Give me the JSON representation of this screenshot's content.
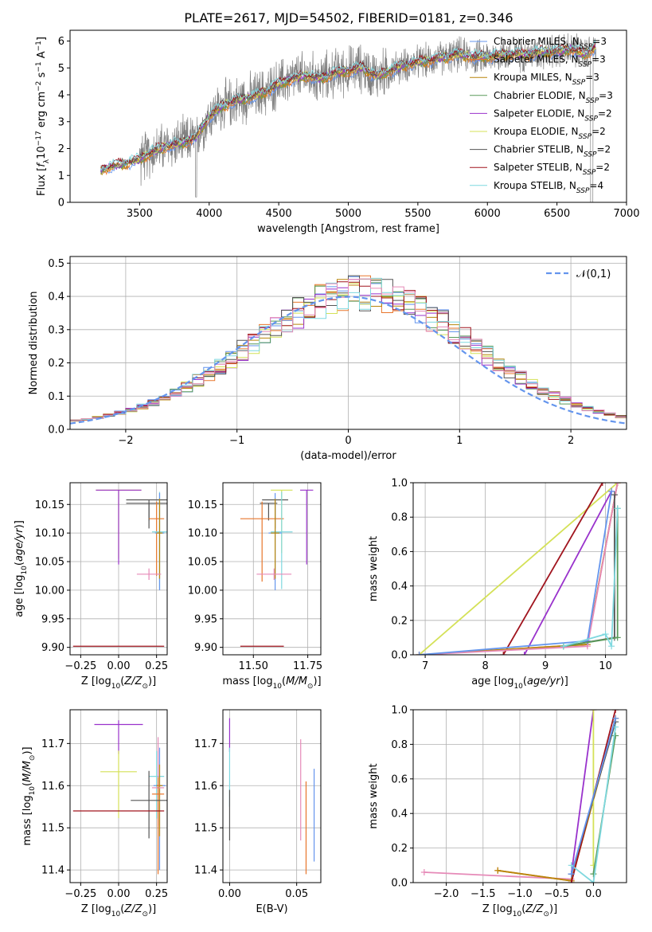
{
  "title": "PLATE=2617, MJD=54502, FIBERID=0181, z=0.346",
  "colors": {
    "Chabrier MILES": "#6495ed",
    "Salpeter MILES": "#e8762b",
    "Kroupa MILES": "#b8860b",
    "Chabrier ELODIE": "#5a9a5a",
    "Salpeter ELODIE": "#9932cc",
    "Kroupa ELODIE": "#d4e157",
    "Chabrier STELIB": "#555555",
    "Salpeter STELIB": "#a0141e",
    "Kroupa STELIB": "#7fd8df",
    "pink": "#e68ab8",
    "normal_curve": "#6495ed",
    "grid": "#b0b0b0"
  },
  "chart_data": [
    {
      "id": "spectrum",
      "type": "line",
      "xlabel": "wavelength [Angstrom, rest frame]",
      "ylabel": "Flux [f_λ 10^-17 erg cm^-2 s^-1 A^-1]",
      "xlim": [
        3000,
        7000
      ],
      "ylim": [
        0,
        6.4
      ],
      "xticks": [
        "3500",
        "4000",
        "4500",
        "5000",
        "5500",
        "6000",
        "6500",
        "7000"
      ],
      "yticks": [
        "0",
        "1",
        "2",
        "3",
        "4",
        "5",
        "6"
      ],
      "grid": false,
      "legend_position": "right",
      "legend": [
        {
          "label": "Chabrier MILES, N_SSP=3",
          "key": "Chabrier MILES"
        },
        {
          "label": "Salpeter MILES, N_SSP=3",
          "key": "Salpeter MILES"
        },
        {
          "label": "Kroupa MILES, N_SSP=3",
          "key": "Kroupa MILES"
        },
        {
          "label": "Chabrier ELODIE, N_SSP=3",
          "key": "Chabrier ELODIE"
        },
        {
          "label": "Salpeter ELODIE, N_SSP=2",
          "key": "Salpeter ELODIE"
        },
        {
          "label": "Kroupa ELODIE, N_SSP=2",
          "key": "Kroupa ELODIE"
        },
        {
          "label": "Chabrier STELIB, N_SSP=2",
          "key": "Chabrier STELIB"
        },
        {
          "label": "Salpeter STELIB, N_SSP=2",
          "key": "Salpeter STELIB"
        },
        {
          "label": "Kroupa STELIB, N_SSP=4",
          "key": "Kroupa STELIB"
        }
      ],
      "model_continuum": {
        "x": [
          3220,
          3300,
          3400,
          3500,
          3600,
          3700,
          3800,
          3900,
          3950,
          4000,
          4100,
          4200,
          4300,
          4400,
          4500,
          4600,
          4700,
          4800,
          4900,
          5000,
          5100,
          5200,
          5300,
          5400,
          5500,
          5600,
          5700,
          5800,
          5900,
          6000,
          6100,
          6200,
          6300,
          6400,
          6500,
          6600,
          6700,
          6780
        ],
        "y": [
          1.2,
          1.35,
          1.45,
          1.6,
          1.9,
          2.1,
          2.2,
          2.4,
          2.8,
          3.2,
          3.6,
          3.8,
          3.9,
          4.1,
          4.4,
          4.6,
          4.7,
          4.6,
          4.8,
          4.9,
          5.0,
          4.7,
          4.9,
          5.1,
          5.2,
          5.3,
          5.4,
          5.5,
          5.4,
          5.4,
          5.5,
          5.5,
          5.5,
          5.6,
          5.6,
          5.7,
          5.5,
          5.8
        ]
      }
    },
    {
      "id": "residuals",
      "type": "histogram",
      "xlabel": "(data-model)/error",
      "ylabel": "Normed distribution",
      "xlim": [
        -2.5,
        2.5
      ],
      "ylim": [
        0,
        0.52
      ],
      "xticks": [
        "−2",
        "−1",
        "0",
        "1",
        "2"
      ],
      "yticks": [
        "0.0",
        "0.1",
        "0.2",
        "0.3",
        "0.4",
        "0.5"
      ],
      "grid": true,
      "legend_position": "top-right",
      "legend_label": "𝒩(0,1)",
      "bin_width": 0.1,
      "series_keys": [
        "Chabrier MILES",
        "Salpeter MILES",
        "Kroupa MILES",
        "Chabrier ELODIE",
        "Salpeter ELODIE",
        "Kroupa ELODIE",
        "Chabrier STELIB",
        "Salpeter STELIB",
        "Kroupa STELIB",
        "pink"
      ]
    },
    {
      "id": "age_vs_Z",
      "type": "scatter",
      "xlabel": "Z [log10(Z/Z⊙)]",
      "ylabel": "age [log10(age/yr)]",
      "xlim": [
        -0.32,
        0.32
      ],
      "ylim": [
        9.887,
        10.188
      ],
      "xticks": [
        -0.25,
        0.0,
        0.25
      ],
      "xticklabels": [
        "−0.25",
        "0.00",
        "0.25"
      ],
      "yticks": [
        9.9,
        9.95,
        10.0,
        10.05,
        10.1,
        10.15
      ],
      "yticklabels": [
        "9.90",
        "9.95",
        "10.00",
        "10.05",
        "10.10",
        "10.15"
      ],
      "grid": true,
      "points": [
        {
          "key": "Kroupa ELODIE",
          "x": 0.0,
          "y": 10.175,
          "xerr": 0.15,
          "yerr": [
            0.12,
            0.0
          ]
        },
        {
          "key": "Salpeter ELODIE",
          "x": 0.0,
          "y": 10.175,
          "xerr": 0.15,
          "yerr": [
            0.13,
            0.0
          ]
        },
        {
          "key": "Chabrier STELIB",
          "x": 0.2,
          "y": 10.158,
          "xerr": 0.15,
          "yerr": [
            0.05,
            0.0
          ]
        },
        {
          "key": "Chabrier STELIB",
          "x": 0.2,
          "y": 10.152,
          "xerr": 0.15,
          "yerr": [
            0.03,
            0.0
          ]
        },
        {
          "key": "Salpeter MILES",
          "x": 0.25,
          "y": 10.125,
          "xerr": 0.05,
          "yerr": [
            0.1,
            0.03
          ]
        },
        {
          "key": "Kroupa STELIB",
          "x": 0.27,
          "y": 10.102,
          "xerr": 0.05,
          "yerr": [
            0.1,
            0.07
          ]
        },
        {
          "key": "Chabrier MILES",
          "x": 0.27,
          "y": 10.1,
          "xerr": 0.03,
          "yerr": [
            0.1,
            0.07
          ]
        },
        {
          "key": "Kroupa MILES",
          "x": 0.27,
          "y": 10.1,
          "xerr": 0.02,
          "yerr": [
            0.08,
            0.06
          ]
        },
        {
          "key": "pink",
          "x": 0.2,
          "y": 10.028,
          "xerr": 0.08,
          "yerr": [
            0.01,
            0.01
          ]
        },
        {
          "key": "Salpeter STELIB",
          "x": 0.0,
          "y": 9.902,
          "xerr": 0.3,
          "yerr": [
            0.0,
            0.0
          ]
        }
      ]
    },
    {
      "id": "age_vs_mass",
      "type": "scatter",
      "xlabel": "mass [log10(M/M⊙)]",
      "ylabel": "",
      "xlim": [
        11.36,
        11.81
      ],
      "ylim": [
        9.887,
        10.188
      ],
      "xticks": [
        11.5,
        11.75
      ],
      "xticklabels": [
        "11.50",
        "11.75"
      ],
      "yticks": [
        9.9,
        9.95,
        10.0,
        10.05,
        10.1,
        10.15
      ],
      "yticklabels": [
        "9.90",
        "9.95",
        "10.00",
        "10.05",
        "10.10",
        "10.15"
      ],
      "grid": true,
      "points": [
        {
          "key": "Kroupa ELODIE",
          "x": 11.63,
          "y": 10.175,
          "xerr": 0.05,
          "yerr": [
            0.11,
            0.0
          ]
        },
        {
          "key": "Salpeter ELODIE",
          "x": 11.745,
          "y": 10.175,
          "xerr": 0.03,
          "yerr": [
            0.13,
            0.0
          ]
        },
        {
          "key": "Chabrier STELIB",
          "x": 11.6,
          "y": 10.158,
          "xerr": 0.06,
          "yerr": [
            0.05,
            0.0
          ]
        },
        {
          "key": "Chabrier STELIB",
          "x": 11.57,
          "y": 10.152,
          "xerr": 0.04,
          "yerr": [
            0.03,
            0.0
          ]
        },
        {
          "key": "Salpeter MILES",
          "x": 11.54,
          "y": 10.125,
          "xerr": 0.1,
          "yerr": [
            0.11,
            0.03
          ]
        },
        {
          "key": "Kroupa STELIB",
          "x": 11.63,
          "y": 10.102,
          "xerr": 0.05,
          "yerr": [
            0.1,
            0.07
          ]
        },
        {
          "key": "Chabrier MILES",
          "x": 11.6,
          "y": 10.1,
          "xerr": 0.03,
          "yerr": [
            0.1,
            0.07
          ]
        },
        {
          "key": "Kroupa MILES",
          "x": 11.6,
          "y": 10.1,
          "xerr": 0.02,
          "yerr": [
            0.08,
            0.06
          ]
        },
        {
          "key": "pink",
          "x": 11.595,
          "y": 10.028,
          "xerr": 0.08,
          "yerr": [
            0.01,
            0.01
          ]
        },
        {
          "key": "Salpeter STELIB",
          "x": 11.54,
          "y": 9.902,
          "xerr": 0.1,
          "yerr": [
            0.0,
            0.0
          ]
        }
      ]
    },
    {
      "id": "cum_age",
      "type": "line",
      "xlabel": "age [log10(age/yr)]",
      "ylabel": "mass weight",
      "xlim": [
        6.8,
        10.35
      ],
      "ylim": [
        0,
        1
      ],
      "xticks": [
        7,
        8,
        9,
        10
      ],
      "xticklabels": [
        "7",
        "8",
        "9",
        "10"
      ],
      "yticks": [
        0,
        0.2,
        0.4,
        0.6,
        0.8,
        1.0
      ],
      "yticklabels": [
        "0.0",
        "0.2",
        "0.4",
        "0.6",
        "0.8",
        "1.0"
      ],
      "grid": true,
      "series": [
        {
          "key": "Kroupa ELODIE",
          "x": [
            6.9,
            10.2
          ],
          "y": [
            0.0,
            1.0
          ]
        },
        {
          "key": "Salpeter STELIB",
          "x": [
            8.3,
            9.95
          ],
          "y": [
            0.0,
            1.0
          ]
        },
        {
          "key": "Salpeter ELODIE",
          "x": [
            8.65,
            10.1
          ],
          "y": [
            0.0,
            0.95
          ]
        },
        {
          "key": "Salpeter MILES",
          "x": [
            6.9,
            9.7,
            10.2
          ],
          "y": [
            0.0,
            0.06,
            1.0
          ]
        },
        {
          "key": "Kroupa MILES",
          "x": [
            6.9,
            9.7,
            10.2
          ],
          "y": [
            0.0,
            0.06,
            1.0
          ]
        },
        {
          "key": "pink",
          "x": [
            6.9,
            9.7,
            10.2
          ],
          "y": [
            0.0,
            0.05,
            1.0
          ]
        },
        {
          "key": "Chabrier MILES",
          "x": [
            6.9,
            9.7,
            10.1
          ],
          "y": [
            0.0,
            0.08,
            0.95
          ]
        },
        {
          "key": "Chabrier STELIB",
          "x": [
            9.3,
            10.15,
            10.15
          ],
          "y": [
            0.05,
            0.1,
            0.93
          ]
        },
        {
          "key": "Chabrier ELODIE",
          "x": [
            9.3,
            10.2,
            10.2
          ],
          "y": [
            0.05,
            0.1,
            0.85
          ]
        },
        {
          "key": "Kroupa STELIB",
          "x": [
            9.3,
            10.0,
            10.1,
            10.2
          ],
          "y": [
            0.05,
            0.12,
            0.05,
            0.85
          ]
        }
      ]
    },
    {
      "id": "mass_vs_Z",
      "type": "scatter",
      "xlabel": "Z [log10(Z/Z⊙)]",
      "ylabel": "mass [log10(M/M⊙)]",
      "xlim": [
        -0.32,
        0.32
      ],
      "ylim": [
        11.37,
        11.78
      ],
      "xticks": [
        -0.25,
        0.0,
        0.25
      ],
      "xticklabels": [
        "−0.25",
        "0.00",
        "0.25"
      ],
      "yticks": [
        11.4,
        11.5,
        11.6,
        11.7
      ],
      "yticklabels": [
        "11.4",
        "11.5",
        "11.6",
        "11.7"
      ],
      "grid": true,
      "points": [
        {
          "key": "Salpeter ELODIE",
          "x": 0.0,
          "y": 11.745,
          "xerr": 0.16,
          "yerr": [
            0.07,
            0.01
          ]
        },
        {
          "key": "Kroupa ELODIE",
          "x": 0.0,
          "y": 11.633,
          "xerr": 0.12,
          "yerr": [
            0.11,
            0.05
          ]
        },
        {
          "key": "Kroupa STELIB",
          "x": 0.25,
          "y": 11.622,
          "xerr": 0.05,
          "yerr": [
            0.1,
            0.06
          ]
        },
        {
          "key": "Chabrier MILES",
          "x": 0.27,
          "y": 11.6,
          "xerr": 0.04,
          "yerr": [
            0.2,
            0.09
          ]
        },
        {
          "key": "Kroupa MILES",
          "x": 0.27,
          "y": 11.6,
          "xerr": 0.02,
          "yerr": [
            0.12,
            0.05
          ]
        },
        {
          "key": "pink",
          "x": 0.26,
          "y": 11.595,
          "xerr": 0.04,
          "yerr": [
            0.09,
            0.12
          ]
        },
        {
          "key": "Salpeter MILES",
          "x": 0.26,
          "y": 11.58,
          "xerr": 0.04,
          "yerr": [
            0.19,
            0.04
          ]
        },
        {
          "key": "Chabrier STELIB",
          "x": 0.2,
          "y": 11.565,
          "xerr": 0.12,
          "yerr": [
            0.09,
            0.07
          ]
        },
        {
          "key": "Salpeter STELIB",
          "x": 0.0,
          "y": 11.54,
          "xerr": 0.3,
          "yerr": [
            0.0,
            0.0
          ]
        }
      ]
    },
    {
      "id": "mass_vs_ebv",
      "type": "scatter",
      "xlabel": "E(B-V)",
      "ylabel": "",
      "xlim": [
        -0.005,
        0.068
      ],
      "ylim": [
        11.37,
        11.78
      ],
      "xticks": [
        0.0,
        0.05
      ],
      "xticklabels": [
        "0.00",
        "0.05"
      ],
      "yticks": [
        11.4,
        11.5,
        11.6,
        11.7
      ],
      "yticklabels": [
        "11.4",
        "11.5",
        "11.6",
        "11.7"
      ],
      "grid": true,
      "points": [
        {
          "key": "Salpeter ELODIE",
          "x": 0.0,
          "y": 11.68,
          "xerr": 0,
          "yerr": [
            0.0,
            0.08
          ]
        },
        {
          "key": "Kroupa STELIB",
          "x": 0.0,
          "y": 11.6,
          "xerr": 0,
          "yerr": [
            0.05,
            0.09
          ]
        },
        {
          "key": "Salpeter STELIB",
          "x": 0.0,
          "y": 11.54,
          "xerr": 0,
          "yerr": [
            0.0,
            0.0
          ]
        },
        {
          "key": "Chabrier STELIB",
          "x": 0.0,
          "y": 11.53,
          "xerr": 0,
          "yerr": [
            0.06,
            0.06
          ]
        },
        {
          "key": "pink",
          "x": 0.053,
          "y": 11.59,
          "xerr": 0,
          "yerr": [
            0.12,
            0.12
          ]
        },
        {
          "key": "Salpeter MILES",
          "x": 0.057,
          "y": 11.5,
          "xerr": 0,
          "yerr": [
            0.11,
            0.11
          ]
        },
        {
          "key": "Chabrier MILES",
          "x": 0.063,
          "y": 11.53,
          "xerr": 0,
          "yerr": [
            0.11,
            0.11
          ]
        }
      ]
    },
    {
      "id": "cum_Z",
      "type": "line",
      "xlabel": "Z [log10(Z/Z⊙)]",
      "ylabel": "mass weight",
      "xlim": [
        -2.45,
        0.45
      ],
      "ylim": [
        0,
        1
      ],
      "xticks": [
        -2.0,
        -1.5,
        -1.0,
        -0.5,
        0.0
      ],
      "xticklabels": [
        "−2.0",
        "−1.5",
        "−1.0",
        "−0.5",
        "0.0"
      ],
      "yticks": [
        0,
        0.2,
        0.4,
        0.6,
        0.8,
        1.0
      ],
      "yticklabels": [
        "0.0",
        "0.2",
        "0.4",
        "0.6",
        "0.8",
        "1.0"
      ],
      "grid": true,
      "series": [
        {
          "key": "pink",
          "x": [
            -2.3,
            -0.3,
            0.3
          ],
          "y": [
            0.06,
            0.02,
            0.95
          ]
        },
        {
          "key": "Salpeter MILES",
          "x": [
            -1.3,
            -0.3,
            0.3
          ],
          "y": [
            0.07,
            0.01,
            0.95
          ]
        },
        {
          "key": "Kroupa MILES",
          "x": [
            -1.3,
            -0.3,
            0.3
          ],
          "y": [
            0.07,
            0.01,
            0.95
          ]
        },
        {
          "key": "Salpeter ELODIE",
          "x": [
            -0.3,
            0.0
          ],
          "y": [
            0.05,
            1.0
          ]
        },
        {
          "key": "Kroupa ELODIE",
          "x": [
            0.0,
            0.0
          ],
          "y": [
            0.1,
            1.0
          ]
        },
        {
          "key": "Chabrier ELODIE",
          "x": [
            0.0,
            0.3
          ],
          "y": [
            0.05,
            0.85
          ]
        },
        {
          "key": "Salpeter STELIB",
          "x": [
            -0.3,
            0.3
          ],
          "y": [
            0.0,
            1.0
          ]
        },
        {
          "key": "Chabrier STELIB",
          "x": [
            -0.3,
            0.3
          ],
          "y": [
            0.05,
            0.93
          ]
        },
        {
          "key": "Kroupa STELIB",
          "x": [
            -0.3,
            0.0,
            0.3
          ],
          "y": [
            0.1,
            0.0,
            0.9
          ]
        },
        {
          "key": "Chabrier MILES",
          "x": [
            -0.3,
            0.3
          ],
          "y": [
            0.05,
            0.95
          ]
        }
      ]
    }
  ]
}
